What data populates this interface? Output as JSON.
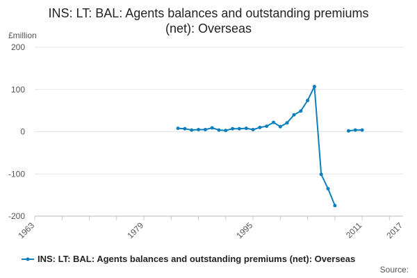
{
  "chart_data": {
    "type": "line",
    "title": "INS: LT: BAL: Agents balances and outstanding premiums (net): Overseas",
    "ylabel": "£million",
    "xlabel": "",
    "ylim": [
      -200,
      200
    ],
    "xlim": [
      1963,
      2017
    ],
    "x_ticks": [
      1963,
      1979,
      1995,
      2011,
      2017
    ],
    "y_ticks": [
      -200,
      -100,
      0,
      100,
      200
    ],
    "grid": true,
    "legend_position": "bottom",
    "series": [
      {
        "name": "INS: LT: BAL: Agents balances and outstanding premiums (net): Overseas",
        "color": "#0b7fbe",
        "points": [
          [
            1984,
            8
          ],
          [
            1985,
            7
          ],
          [
            1986,
            4
          ],
          [
            1987,
            5
          ],
          [
            1988,
            5
          ],
          [
            1989,
            9
          ],
          [
            1990,
            4
          ],
          [
            1991,
            3
          ],
          [
            1992,
            7
          ],
          [
            1993,
            7
          ],
          [
            1994,
            8
          ],
          [
            1995,
            5
          ],
          [
            1996,
            10
          ],
          [
            1997,
            13
          ],
          [
            1998,
            22
          ],
          [
            1999,
            12
          ],
          [
            2000,
            21
          ],
          [
            2001,
            40
          ],
          [
            2002,
            49
          ],
          [
            2003,
            74
          ],
          [
            2004,
            107
          ],
          [
            2005,
            -101
          ],
          [
            2006,
            -135
          ],
          [
            2007,
            -175
          ],
          null,
          [
            2009,
            2
          ],
          [
            2010,
            4
          ],
          [
            2011,
            4
          ]
        ]
      }
    ]
  },
  "title_display": "INS: LT: BAL: Agents balances and outstanding premiums\n(net): Overseas",
  "y_unit": "£million",
  "legend_label": "INS: LT: BAL: Agents balances and outstanding premiums (net): Overseas",
  "source_label": "Source:"
}
